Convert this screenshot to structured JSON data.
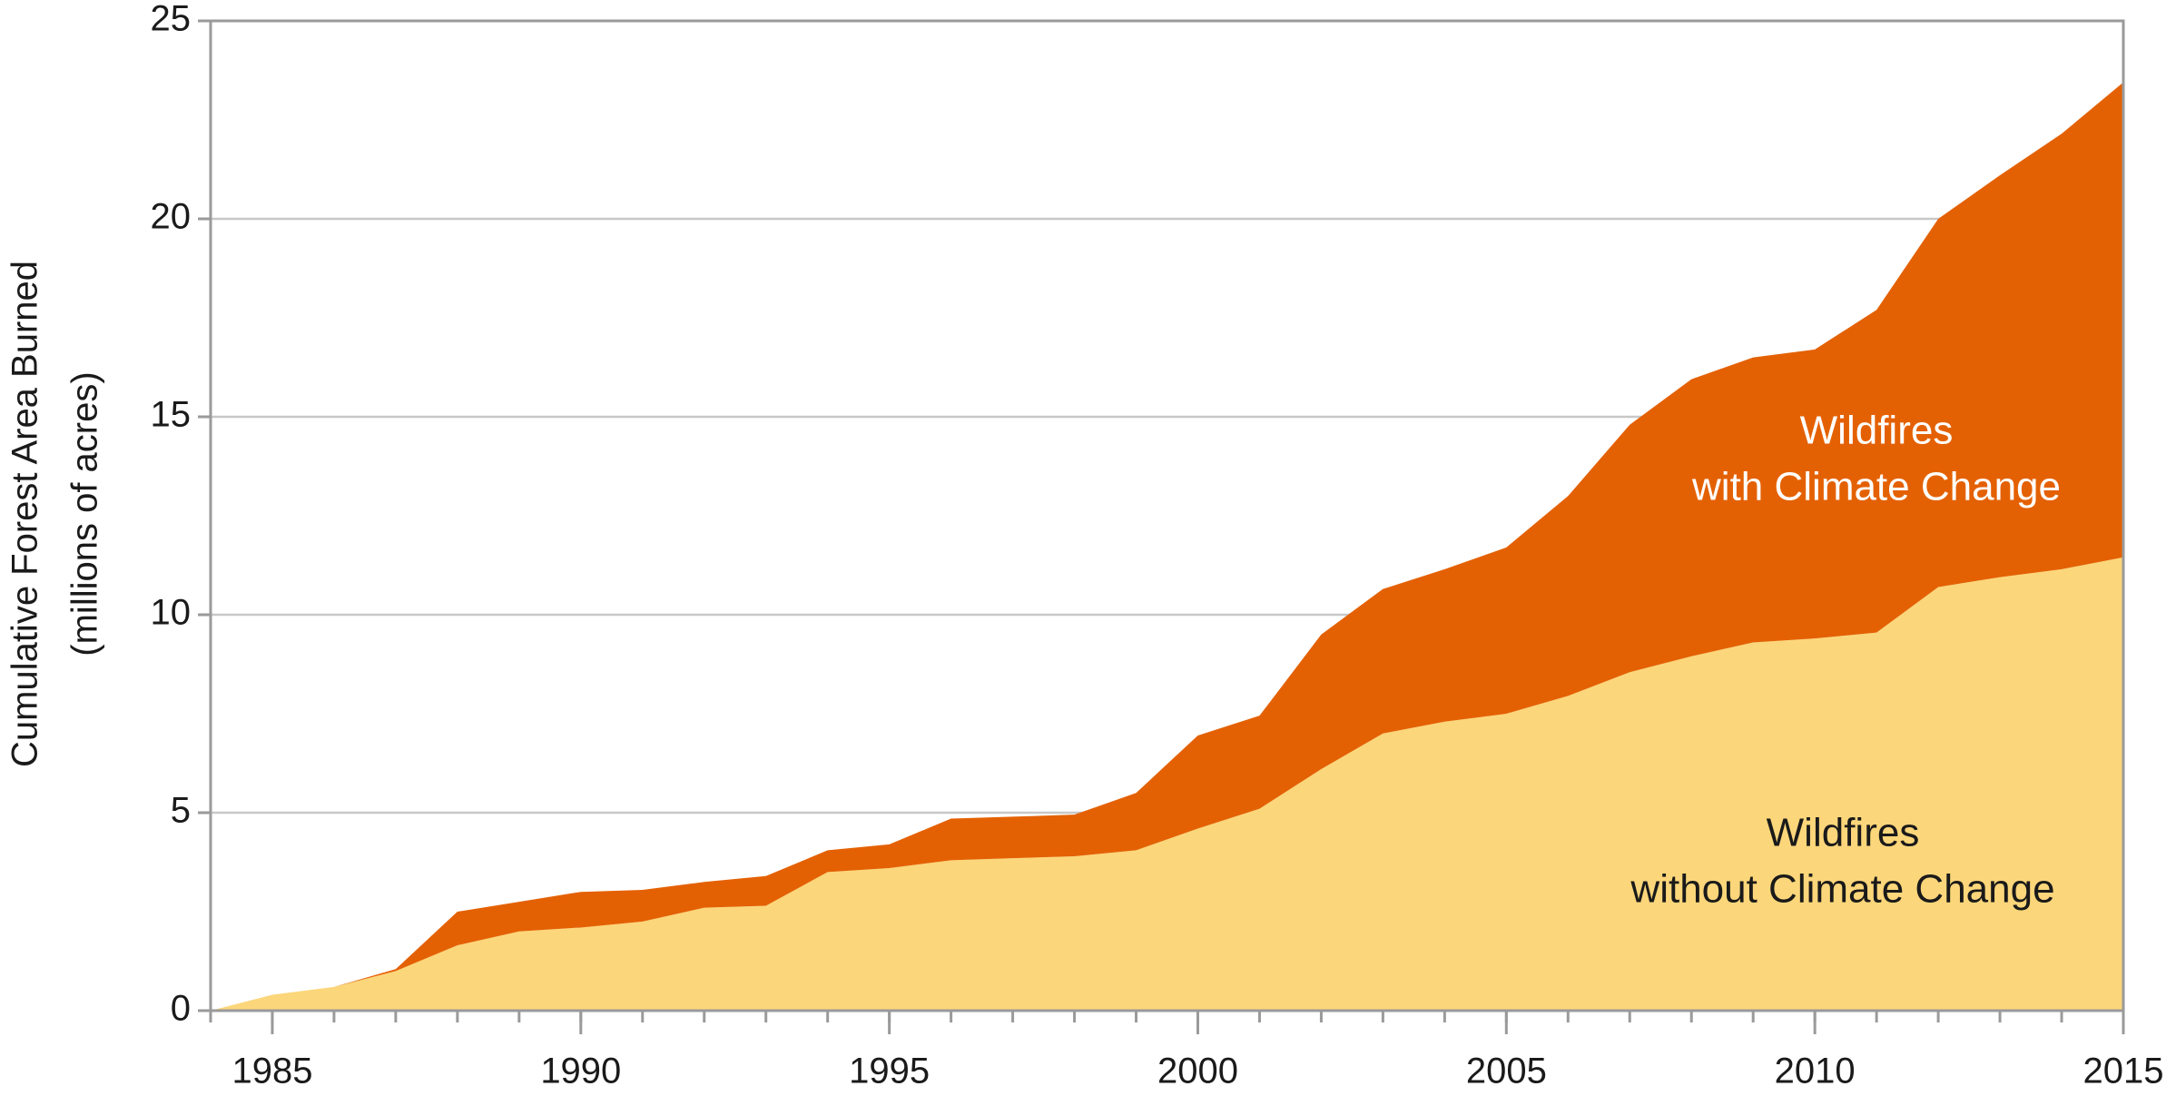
{
  "chart_data": {
    "type": "stacked_area",
    "y_label": [
      "Cumulative Forest Area Burned",
      "(millions of acres)"
    ],
    "x": [
      1984,
      1985,
      1986,
      1987,
      1988,
      1989,
      1990,
      1991,
      1992,
      1993,
      1994,
      1995,
      1996,
      1997,
      1998,
      1999,
      2000,
      2001,
      2002,
      2003,
      2004,
      2005,
      2006,
      2007,
      2008,
      2009,
      2010,
      2011,
      2012,
      2013,
      2014,
      2015
    ],
    "series": [
      {
        "name": [
          "Wildfires",
          "without Climate Change"
        ],
        "color": "#fcd67a",
        "text_color": "#1a1a1a",
        "values": [
          0,
          0.4,
          0.6,
          1.0,
          1.65,
          2.0,
          2.1,
          2.25,
          2.6,
          2.65,
          3.5,
          3.6,
          3.8,
          3.85,
          3.9,
          4.05,
          4.6,
          5.1,
          6.1,
          7.0,
          7.3,
          7.5,
          7.95,
          8.55,
          8.95,
          9.3,
          9.4,
          9.55,
          10.7,
          10.95,
          11.15,
          11.45
        ]
      },
      {
        "name": [
          "Wildfires",
          "with Climate Change"
        ],
        "color": "#e46103",
        "text_color": "#ffffff",
        "values": [
          0,
          0,
          0,
          0.05,
          0.85,
          0.75,
          0.9,
          0.8,
          0.65,
          0.75,
          0.55,
          0.6,
          1.05,
          1.05,
          1.05,
          1.45,
          2.35,
          2.35,
          3.4,
          3.65,
          3.85,
          4.2,
          5.05,
          6.25,
          7.0,
          7.2,
          7.3,
          8.15,
          9.3,
          10.15,
          11.0,
          12.0
        ]
      }
    ],
    "xlim": [
      1984,
      2015
    ],
    "xticks": [
      1985,
      1990,
      1995,
      2000,
      2005,
      2010,
      2015
    ],
    "xminorticks": [
      1984,
      1985,
      1986,
      1987,
      1988,
      1989,
      1990,
      1991,
      1992,
      1993,
      1994,
      1995,
      1996,
      1997,
      1998,
      1999,
      2000,
      2001,
      2002,
      2003,
      2004,
      2005,
      2006,
      2007,
      2008,
      2009,
      2010,
      2011,
      2012,
      2013,
      2014,
      2015
    ],
    "ylim": [
      0,
      25
    ],
    "yticks": [
      0,
      5,
      10,
      15,
      20,
      25
    ],
    "grid": true
  }
}
